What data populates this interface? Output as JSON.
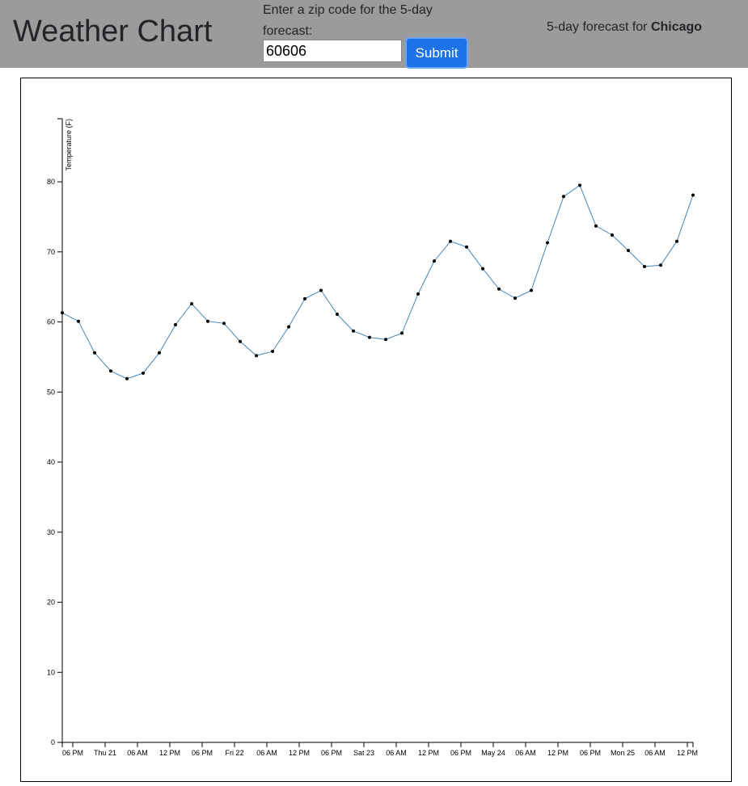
{
  "header": {
    "title": "Weather Chart",
    "zip_prompt": "Enter a zip code for the 5-day forecast:",
    "zip_value": "60606",
    "submit_label": "Submit",
    "forecast_prefix": "5-day forecast for ",
    "city": "Chicago"
  },
  "chart_data": {
    "type": "line",
    "title": "",
    "xlabel": "",
    "ylabel": "Temperature (F)",
    "ylim": [
      0,
      89
    ],
    "y_ticks": [
      0,
      10,
      20,
      30,
      40,
      50,
      60,
      70,
      80
    ],
    "x_tick_labels": [
      "06 PM",
      "Thu 21",
      "06 AM",
      "12 PM",
      "06 PM",
      "Fri 22",
      "06 AM",
      "12 PM",
      "06 PM",
      "Sat 23",
      "06 AM",
      "12 PM",
      "06 PM",
      "May 24",
      "06 AM",
      "12 PM",
      "06 PM",
      "Mon 25",
      "06 AM",
      "12 PM"
    ],
    "line_color": "#4682b4",
    "series": [
      {
        "values": [
          61.3,
          60.1,
          55.6,
          53.0,
          51.9,
          52.7,
          55.6,
          59.6,
          62.6,
          60.1,
          59.8,
          57.2,
          55.2,
          55.8,
          59.3,
          63.3,
          64.5,
          61.1,
          58.7,
          57.8,
          57.5,
          58.4,
          64.0,
          68.7,
          71.5,
          70.7,
          67.6,
          64.7,
          63.4,
          64.5,
          71.3,
          77.9,
          79.5,
          73.7,
          72.4,
          70.2,
          67.9,
          68.1,
          71.5,
          78.1
        ]
      }
    ]
  }
}
